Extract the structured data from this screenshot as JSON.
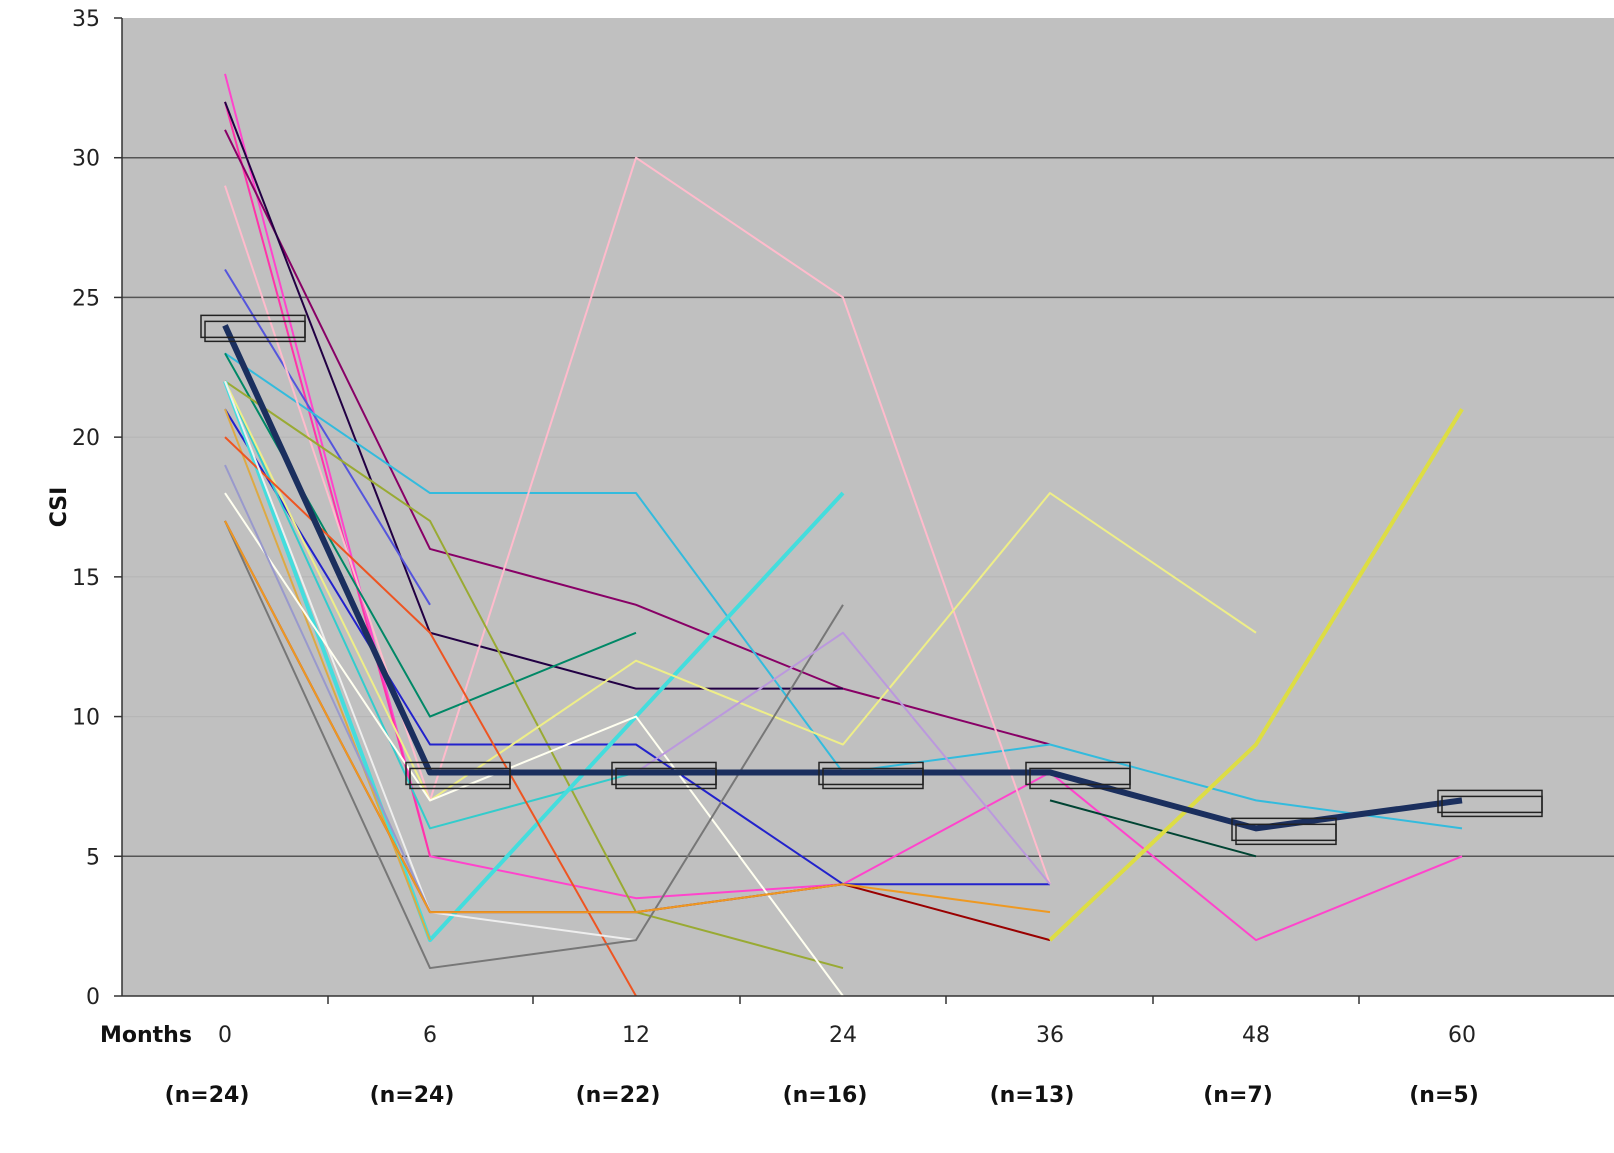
{
  "chart_data": {
    "type": "line",
    "ylabel": "CSI",
    "xlabel_prefix": "Months",
    "categories": [
      "0",
      "6",
      "12",
      "24",
      "36",
      "48",
      "60"
    ],
    "counts": [
      "(n=24)",
      "(n=24)",
      "(n=22)",
      "(n=16)",
      "(n=13)",
      "(n=7)",
      "(n=5)"
    ],
    "ylim": [
      0,
      35
    ],
    "yticks": [
      0,
      5,
      10,
      15,
      20,
      25,
      30,
      35
    ],
    "gridlines": [
      5,
      25,
      30
    ],
    "plot_background": "#c0c0c0",
    "mean_series": {
      "color": "#1b2f5e",
      "values": [
        24,
        8,
        8,
        8,
        8,
        6,
        7
      ]
    },
    "series": [
      {
        "color": "#ff44cc",
        "values": [
          33,
          5,
          3.5,
          4,
          8,
          2,
          5
        ]
      },
      {
        "color": "#ff33aa",
        "values": [
          32,
          5,
          null,
          null,
          null,
          null,
          null
        ]
      },
      {
        "color": "#880066",
        "values": [
          31,
          16,
          14,
          11,
          9,
          null,
          null
        ]
      },
      {
        "color": "#220044",
        "values": [
          32,
          13,
          11,
          11,
          null,
          null,
          null
        ]
      },
      {
        "color": "#5555dd",
        "values": [
          26,
          14,
          null,
          null,
          null,
          null,
          null
        ]
      },
      {
        "color": "#33bbdd",
        "values": [
          23,
          18,
          18,
          8,
          9,
          7,
          6
        ]
      },
      {
        "color": "#ffbbcc",
        "values": [
          29,
          7,
          30,
          25,
          4,
          null,
          null
        ]
      },
      {
        "color": "#008866",
        "values": [
          23,
          10,
          13,
          null,
          null,
          null,
          null
        ]
      },
      {
        "color": "#99aa33",
        "values": [
          22,
          17,
          3,
          1,
          null,
          null,
          null
        ]
      },
      {
        "color": "#2222cc",
        "values": [
          21,
          9,
          9,
          4,
          4,
          null,
          null
        ]
      },
      {
        "color": "#33cccc",
        "values": [
          22,
          6,
          8,
          null,
          null,
          null,
          null
        ]
      },
      {
        "color": "#44dddd",
        "values": [
          22,
          2,
          10,
          18,
          null,
          null,
          null
        ]
      },
      {
        "color": "#eeee88",
        "values": [
          22,
          7,
          12,
          9,
          18,
          13,
          null
        ]
      },
      {
        "color": "#ddaa44",
        "values": [
          21,
          2,
          null,
          null,
          null,
          null,
          null
        ]
      },
      {
        "color": "#ee5522",
        "values": [
          20,
          13,
          0,
          null,
          null,
          null,
          null
        ]
      },
      {
        "color": "#eeeeee",
        "values": [
          22,
          3,
          2,
          null,
          null,
          null,
          null
        ]
      },
      {
        "color": "#fffff0",
        "values": [
          18,
          7,
          10,
          0,
          null,
          null,
          null
        ]
      },
      {
        "color": "#9999cc",
        "values": [
          19,
          3,
          null,
          null,
          null,
          null,
          null
        ]
      },
      {
        "color": "#990000",
        "values": [
          17,
          3,
          3,
          4,
          2,
          null,
          null
        ]
      },
      {
        "color": "#777777",
        "values": [
          17,
          1,
          2,
          14,
          null,
          null,
          null
        ]
      },
      {
        "color": "#ee9922",
        "values": [
          17,
          3,
          3,
          4,
          3,
          null,
          null
        ]
      },
      {
        "color": "#004433",
        "values": [
          null,
          null,
          null,
          null,
          7,
          5,
          null
        ]
      },
      {
        "color": "#dddd44",
        "values": [
          null,
          null,
          null,
          null,
          2,
          9,
          21
        ]
      },
      {
        "color": "#bb99dd",
        "values": [
          null,
          null,
          8,
          13,
          4,
          null,
          null
        ]
      }
    ]
  }
}
